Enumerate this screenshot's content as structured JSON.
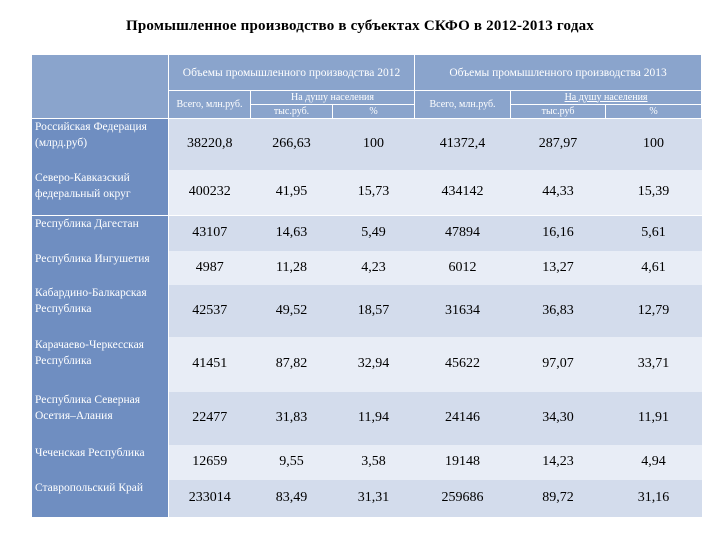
{
  "title": "Промышленное производство в субъектах СКФО в 2012-2013 годах",
  "header": {
    "group_2012": "Объемы промышленного производства 2012",
    "group_2013": "Объемы промышленного производства 2013",
    "total_2012": "Всего, млн.руб.",
    "per_capita_2012": "На душу населения",
    "thousand_2012": "тыс.руб.",
    "pct_2012": "%",
    "total_2013": "Всего, млн.руб.",
    "per_capita_2013": "На душу населения",
    "thousand_2013": "тыс.руб",
    "pct_2013": "%"
  },
  "rows": [
    {
      "name": "Российская Федерация (млрд.руб)",
      "values": [
        "38220,8",
        "266,63",
        "100",
        "41372,4",
        "287,97",
        "100"
      ]
    },
    {
      "name": "Северо-Кавказский федеральный округ",
      "values": [
        "400232",
        "41,95",
        "15,73",
        "434142",
        "44,33",
        "15,39"
      ]
    },
    {
      "name": "Республика Дагестан",
      "values": [
        "43107",
        "14,63",
        "5,49",
        "47894",
        "16,16",
        "5,61"
      ]
    },
    {
      "name": "Республика Ингушетия",
      "values": [
        "4987",
        "11,28",
        "4,23",
        "6012",
        "13,27",
        "4,61"
      ]
    },
    {
      "name": "Кабардино-Балкарская Республика",
      "values": [
        "42537",
        "49,52",
        "18,57",
        "31634",
        "36,83",
        "12,79"
      ]
    },
    {
      "name": "Карачаево-Черкесская Республика",
      "values": [
        "41451",
        "87,82",
        "32,94",
        "45622",
        "97,07",
        "33,71"
      ]
    },
    {
      "name": "Республика Северная Осетия–Алания",
      "values": [
        "22477",
        "31,83",
        "11,94",
        "24146",
        "34,30",
        "11,91"
      ]
    },
    {
      "name": "Чеченская Республика",
      "values": [
        "12659",
        "9,55",
        "3,58",
        "19148",
        "14,23",
        "4,94"
      ]
    },
    {
      "name": "Ставропольский Край",
      "values": [
        "233014",
        "83,49",
        "31,31",
        "259686",
        "89,72",
        "31,16"
      ]
    }
  ]
}
